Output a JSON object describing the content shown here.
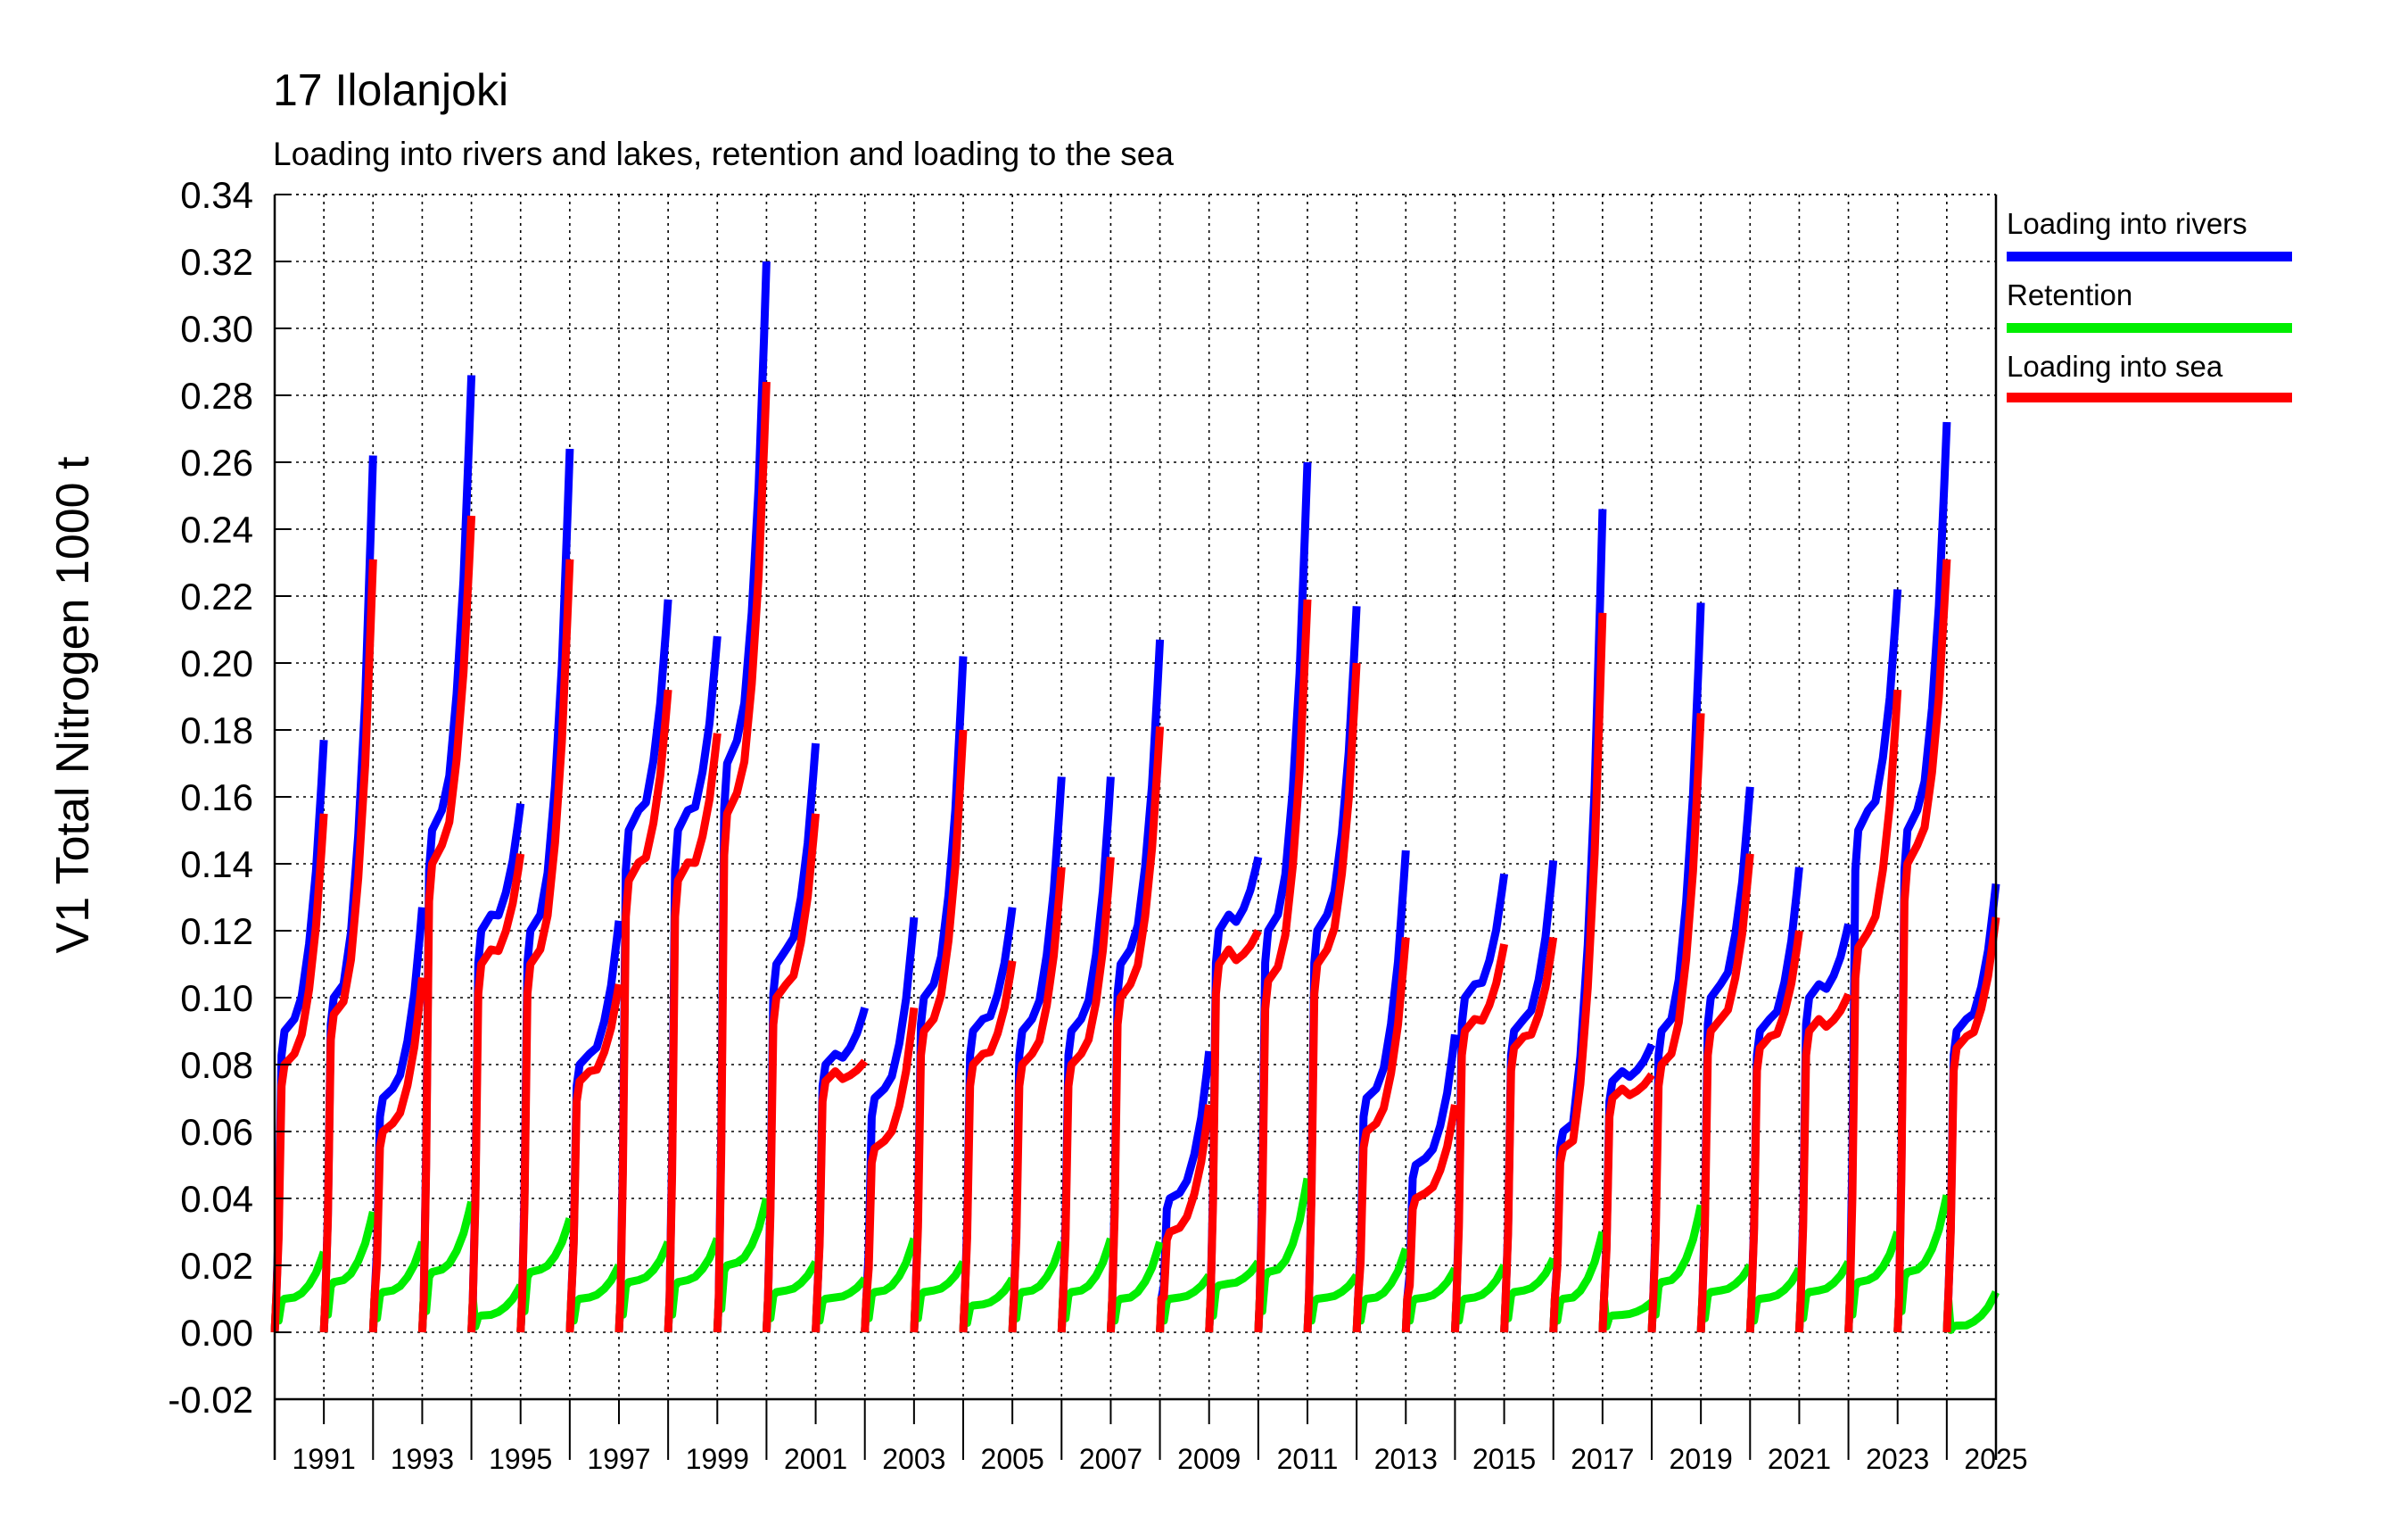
{
  "title": "17 Ilolanjoki",
  "subtitle": "Loading into rivers and lakes, retention and loading to the sea",
  "colors": {
    "rivers": "#0000ff",
    "retention": "#00ee00",
    "sea": "#ff0000",
    "grid": "#000000"
  },
  "legend": [
    {
      "label": "Loading into rivers",
      "color": "#0000ff"
    },
    {
      "label": "Retention",
      "color": "#00ee00"
    },
    {
      "label": "Loading into sea",
      "color": "#ff0000"
    }
  ],
  "chart_data": {
    "type": "line",
    "title": "17 Ilolanjoki",
    "subtitle": "Loading into rivers and lakes, retention and loading to the sea",
    "ylabel": "V1 Total Nitrogen 1000 t",
    "ylim": [
      -0.02,
      0.34
    ],
    "yticks": [
      "-0.02",
      "0.00",
      "0.02",
      "0.04",
      "0.06",
      "0.08",
      "0.10",
      "0.12",
      "0.14",
      "0.16",
      "0.18",
      "0.20",
      "0.22",
      "0.24",
      "0.26",
      "0.28",
      "0.30",
      "0.32",
      "0.34"
    ],
    "xlim": [
      1990.0,
      2025.0
    ],
    "xtick_labels": [
      "1991",
      "1993",
      "1995",
      "1997",
      "1999",
      "2001",
      "2003",
      "2005",
      "2007",
      "2009",
      "2011",
      "2013",
      "2015",
      "2017",
      "2019",
      "2021",
      "2023",
      "2025"
    ],
    "grid": true,
    "legend_position": "right",
    "note": "Cumulative hydrological-year values; each year resets to zero. Values are end-of-year totals.",
    "series": [
      {
        "name": "Loading into rivers",
        "color": "#0000ff",
        "years": [
          1991,
          1992,
          1993,
          1994,
          1995,
          1996,
          1997,
          1998,
          1999,
          2000,
          2001,
          2002,
          2003,
          2004,
          2005,
          2006,
          2007,
          2008,
          2009,
          2010,
          2011,
          2012,
          2013,
          2014,
          2015,
          2016,
          2017,
          2018,
          2019,
          2020,
          2021,
          2022,
          2023,
          2024,
          2025
        ],
        "end_values": [
          0.177,
          0.262,
          0.127,
          0.286,
          0.158,
          0.264,
          0.123,
          0.219,
          0.208,
          0.32,
          0.176,
          0.097,
          0.124,
          0.202,
          0.127,
          0.166,
          0.166,
          0.207,
          0.084,
          0.142,
          0.26,
          0.217,
          0.144,
          0.089,
          0.137,
          0.141,
          0.246,
          0.086,
          0.218,
          0.163,
          0.139,
          0.122,
          0.222,
          0.272,
          0.134
        ],
        "mid_values": [
          0.09,
          0.1,
          0.07,
          0.15,
          0.12,
          0.12,
          0.08,
          0.15,
          0.15,
          0.17,
          0.11,
          0.08,
          0.07,
          0.1,
          0.09,
          0.09,
          0.09,
          0.11,
          0.04,
          0.12,
          0.12,
          0.12,
          0.07,
          0.05,
          0.1,
          0.09,
          0.06,
          0.075,
          0.09,
          0.1,
          0.09,
          0.1,
          0.15,
          0.15,
          0.09
        ]
      },
      {
        "name": "Retention",
        "color": "#00ee00",
        "years": [
          1991,
          1992,
          1993,
          1994,
          1995,
          1996,
          1997,
          1998,
          1999,
          2000,
          2001,
          2002,
          2003,
          2004,
          2005,
          2006,
          2007,
          2008,
          2009,
          2010,
          2011,
          2012,
          2013,
          2014,
          2015,
          2016,
          2017,
          2018,
          2019,
          2020,
          2021,
          2022,
          2023,
          2024,
          2025
        ],
        "end_values": [
          0.024,
          0.036,
          0.027,
          0.039,
          0.014,
          0.034,
          0.02,
          0.027,
          0.028,
          0.04,
          0.021,
          0.016,
          0.028,
          0.021,
          0.016,
          0.027,
          0.028,
          0.027,
          0.017,
          0.021,
          0.046,
          0.017,
          0.025,
          0.019,
          0.02,
          0.022,
          0.03,
          0.009,
          0.038,
          0.02,
          0.019,
          0.021,
          0.03,
          0.041,
          0.012
        ],
        "mid_values": [
          0.01,
          0.015,
          0.012,
          0.018,
          0.005,
          0.018,
          0.01,
          0.015,
          0.015,
          0.02,
          0.012,
          0.01,
          0.012,
          0.012,
          0.008,
          0.012,
          0.012,
          0.01,
          0.01,
          0.014,
          0.018,
          0.01,
          0.01,
          0.01,
          0.01,
          0.012,
          0.01,
          0.005,
          0.015,
          0.012,
          0.01,
          0.012,
          0.015,
          0.018,
          0.002
        ]
      },
      {
        "name": "Loading into sea",
        "color": "#ff0000",
        "years": [
          1991,
          1992,
          1993,
          1994,
          1995,
          1996,
          1997,
          1998,
          1999,
          2000,
          2001,
          2002,
          2003,
          2004,
          2005,
          2006,
          2007,
          2008,
          2009,
          2010,
          2011,
          2012,
          2013,
          2014,
          2015,
          2016,
          2017,
          2018,
          2019,
          2020,
          2021,
          2022,
          2023,
          2024,
          2025
        ],
        "end_values": [
          0.155,
          0.231,
          0.106,
          0.244,
          0.143,
          0.231,
          0.104,
          0.192,
          0.179,
          0.284,
          0.155,
          0.081,
          0.097,
          0.18,
          0.111,
          0.139,
          0.142,
          0.181,
          0.068,
          0.12,
          0.219,
          0.2,
          0.118,
          0.068,
          0.116,
          0.118,
          0.215,
          0.077,
          0.185,
          0.143,
          0.12,
          0.101,
          0.192,
          0.231,
          0.124
        ],
        "mid_values": [
          0.08,
          0.095,
          0.06,
          0.14,
          0.11,
          0.11,
          0.075,
          0.135,
          0.135,
          0.155,
          0.1,
          0.075,
          0.055,
          0.09,
          0.08,
          0.08,
          0.08,
          0.1,
          0.03,
          0.11,
          0.105,
          0.11,
          0.06,
          0.04,
          0.09,
          0.085,
          0.055,
          0.07,
          0.08,
          0.09,
          0.085,
          0.09,
          0.115,
          0.14,
          0.085
        ]
      }
    ]
  }
}
